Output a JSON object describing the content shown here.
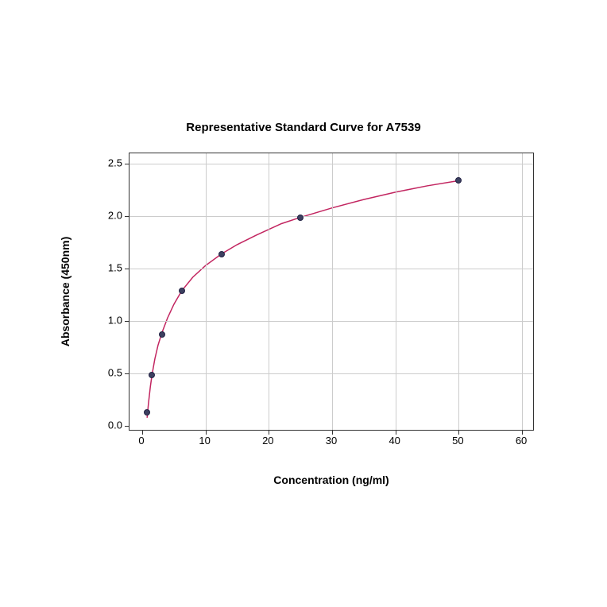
{
  "chart": {
    "type": "scatter-with-curve",
    "title": "Representative Standard Curve for A7539",
    "title_fontsize": 15,
    "xlabel": "Concentration (ng/ml)",
    "ylabel": "Absorbance (450nm)",
    "label_fontsize": 14,
    "tick_fontsize": 13,
    "xlim": [
      -2,
      62
    ],
    "ylim": [
      -0.05,
      2.6
    ],
    "xticks": [
      0,
      10,
      20,
      30,
      40,
      50,
      60
    ],
    "yticks": [
      0.0,
      0.5,
      1.0,
      1.5,
      2.0,
      2.5
    ],
    "ytick_labels": [
      "0.0",
      "0.5",
      "1.0",
      "1.5",
      "2.0",
      "2.5"
    ],
    "background_color": "#ffffff",
    "grid_color": "#cccccc",
    "axis_color": "#333333",
    "marker_color": "#3d4060",
    "marker_edge_color": "#222244",
    "marker_size": 8,
    "line_color": "#c22560",
    "line_width": 1.5,
    "data_points": [
      {
        "x": 0.78,
        "y": 0.13
      },
      {
        "x": 1.56,
        "y": 0.49
      },
      {
        "x": 3.12,
        "y": 0.87
      },
      {
        "x": 6.25,
        "y": 1.29
      },
      {
        "x": 12.5,
        "y": 1.64
      },
      {
        "x": 25.0,
        "y": 1.99
      },
      {
        "x": 50.0,
        "y": 2.34
      }
    ],
    "curve_points": [
      {
        "x": 0.78,
        "y": 0.08
      },
      {
        "x": 1.0,
        "y": 0.22
      },
      {
        "x": 1.3,
        "y": 0.38
      },
      {
        "x": 1.56,
        "y": 0.49
      },
      {
        "x": 2.0,
        "y": 0.64
      },
      {
        "x": 2.5,
        "y": 0.77
      },
      {
        "x": 3.12,
        "y": 0.89
      },
      {
        "x": 4.0,
        "y": 1.03
      },
      {
        "x": 5.0,
        "y": 1.16
      },
      {
        "x": 6.25,
        "y": 1.29
      },
      {
        "x": 8.0,
        "y": 1.42
      },
      {
        "x": 10.0,
        "y": 1.53
      },
      {
        "x": 12.5,
        "y": 1.64
      },
      {
        "x": 15.0,
        "y": 1.73
      },
      {
        "x": 18.0,
        "y": 1.82
      },
      {
        "x": 22.0,
        "y": 1.93
      },
      {
        "x": 25.0,
        "y": 1.99
      },
      {
        "x": 30.0,
        "y": 2.08
      },
      {
        "x": 35.0,
        "y": 2.16
      },
      {
        "x": 40.0,
        "y": 2.23
      },
      {
        "x": 45.0,
        "y": 2.29
      },
      {
        "x": 50.0,
        "y": 2.34
      }
    ]
  }
}
